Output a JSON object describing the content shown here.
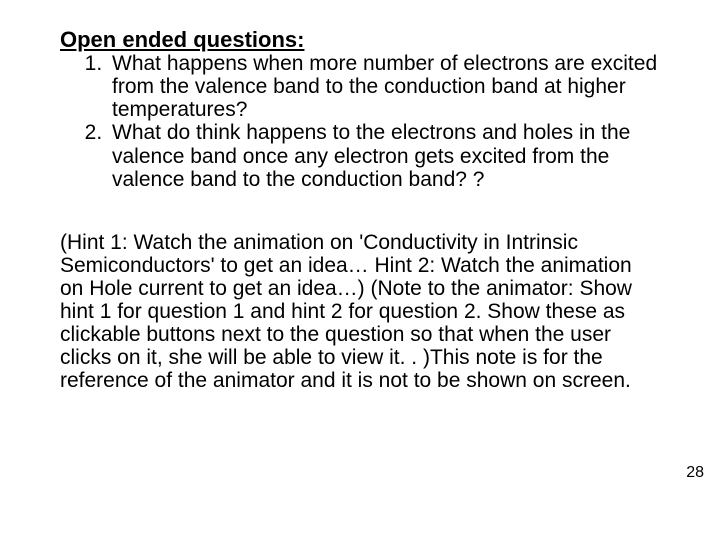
{
  "heading": "Open ended questions:",
  "questions": [
    "What happens when more number of electrons are excited from the valence band to the conduction band at higher temperatures?",
    "What do think happens to the electrons and holes in the valence band once any electron gets excited from the valence band to the conduction band? ?"
  ],
  "hints": "(Hint 1: Watch the animation on 'Conductivity in Intrinsic Semiconductors' to get an idea…\nHint 2: Watch the animation on Hole current to get an idea…)\n(Note to the animator: Show hint 1 for question 1 and hint 2 for question 2. Show these as clickable buttons next to the question so that when the user clicks on it, she will be able to view it. . )This note is for the reference of the animator and it is not to be shown on screen.",
  "page_number": "28",
  "style": {
    "background_color": "#ffffff",
    "text_color": "#000000",
    "heading_fontsize": 22,
    "body_fontsize": 21,
    "page_number_fontsize": 16,
    "font_family": "Arial"
  }
}
